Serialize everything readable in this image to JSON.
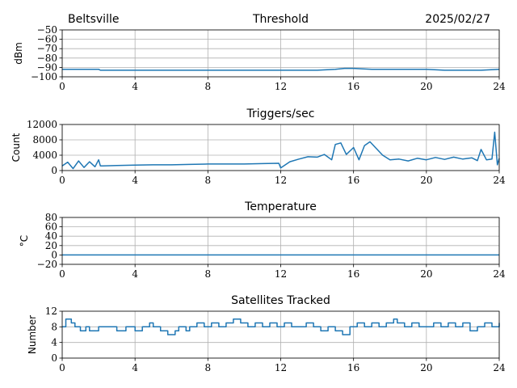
{
  "header": {
    "station": "Beltsville",
    "date": "2025/02/27"
  },
  "chart_data": [
    {
      "type": "line",
      "title": "Threshold",
      "ylabel": "dBm",
      "xlim": [
        0,
        24
      ],
      "ylim": [
        -100,
        -50
      ],
      "x_ticks": [
        0,
        4,
        8,
        12,
        16,
        20,
        24
      ],
      "y_ticks": [
        -100,
        -90,
        -80,
        -70,
        -60,
        -50
      ],
      "y_tick_labels": [
        "−100",
        "−90",
        "−80",
        "−70",
        "−60",
        "−50"
      ],
      "grid": true,
      "series": [
        {
          "x": [
            0,
            2,
            2.1,
            4,
            6,
            8,
            10,
            12,
            13,
            14,
            15,
            15.5,
            16,
            17,
            18,
            19,
            20,
            21,
            22,
            23,
            24
          ],
          "y": [
            -92,
            -92,
            -93,
            -93,
            -93,
            -93,
            -93,
            -93,
            -93,
            -93,
            -92,
            -91,
            -91,
            -92,
            -92,
            -92,
            -92,
            -93,
            -93,
            -93,
            -92
          ]
        }
      ]
    },
    {
      "type": "line",
      "title": "Triggers/sec",
      "ylabel": "Count",
      "xlim": [
        0,
        24
      ],
      "ylim": [
        0,
        12000
      ],
      "x_ticks": [
        0,
        4,
        8,
        12,
        16,
        20,
        24
      ],
      "y_ticks": [
        0,
        4000,
        8000,
        12000
      ],
      "y_tick_labels": [
        "0",
        "4000",
        "8000",
        "12000"
      ],
      "grid": true,
      "series": [
        {
          "x": [
            0,
            0.3,
            0.6,
            0.9,
            1.2,
            1.5,
            1.8,
            2.0,
            2.1,
            3,
            4,
            5,
            6,
            7,
            8,
            9,
            10,
            11,
            11.9,
            12.0,
            12.5,
            13,
            13.5,
            14,
            14.4,
            14.8,
            15.0,
            15.3,
            15.6,
            16.0,
            16.3,
            16.6,
            16.9,
            17.2,
            17.6,
            18.0,
            18.5,
            19.0,
            19.5,
            20.0,
            20.5,
            21.0,
            21.5,
            22.0,
            22.5,
            22.8,
            23.0,
            23.3,
            23.6,
            23.75,
            23.9,
            24.0
          ],
          "y": [
            1200,
            2200,
            500,
            2500,
            800,
            2300,
            1000,
            2800,
            1200,
            1300,
            1400,
            1500,
            1500,
            1600,
            1700,
            1700,
            1700,
            1800,
            1900,
            700,
            2300,
            3000,
            3600,
            3500,
            4200,
            2800,
            6800,
            7200,
            4200,
            6000,
            2800,
            6500,
            7500,
            6000,
            4000,
            2800,
            3000,
            2500,
            3200,
            2800,
            3400,
            2900,
            3500,
            3000,
            3300,
            2600,
            5500,
            2800,
            3000,
            10000,
            1500,
            3200
          ]
        }
      ]
    },
    {
      "type": "line",
      "title": "Temperature",
      "ylabel": "°C",
      "xlim": [
        0,
        24
      ],
      "ylim": [
        -20,
        80
      ],
      "x_ticks": [
        0,
        4,
        8,
        12,
        16,
        20,
        24
      ],
      "y_ticks": [
        -20,
        0,
        20,
        40,
        60,
        80
      ],
      "y_tick_labels": [
        "−20",
        "0",
        "20",
        "40",
        "60",
        "80"
      ],
      "grid": true,
      "series": [
        {
          "x": [
            0,
            24
          ],
          "y": [
            0,
            0
          ]
        }
      ]
    },
    {
      "type": "line",
      "title": "Satellites Tracked",
      "ylabel": "Number",
      "xlim": [
        0,
        24
      ],
      "ylim": [
        0,
        12
      ],
      "x_ticks": [
        0,
        4,
        8,
        12,
        16,
        20,
        24
      ],
      "y_ticks": [
        0,
        4,
        8,
        12
      ],
      "y_tick_labels": [
        "0",
        "4",
        "8",
        "12"
      ],
      "grid": true,
      "series": [
        {
          "step": true,
          "x": [
            0,
            0.2,
            0.5,
            0.7,
            1.0,
            1.3,
            1.5,
            2.0,
            2.5,
            3.0,
            3.5,
            4.0,
            4.4,
            4.8,
            5.0,
            5.4,
            5.8,
            6.2,
            6.4,
            6.8,
            7.0,
            7.4,
            7.8,
            8.2,
            8.6,
            9.0,
            9.4,
            9.8,
            10.2,
            10.6,
            11.0,
            11.4,
            11.8,
            12.2,
            12.6,
            13.0,
            13.4,
            13.8,
            14.2,
            14.6,
            15.0,
            15.4,
            15.8,
            16.2,
            16.6,
            17.0,
            17.4,
            17.8,
            18.2,
            18.4,
            18.8,
            19.2,
            19.6,
            20.0,
            20.4,
            20.8,
            21.2,
            21.6,
            22.0,
            22.4,
            22.8,
            23.2,
            23.6,
            24.0
          ],
          "y": [
            8,
            10,
            9,
            8,
            7,
            8,
            7,
            8,
            8,
            7,
            8,
            7,
            8,
            9,
            8,
            7,
            6,
            7,
            8,
            7,
            8,
            9,
            8,
            9,
            8,
            9,
            10,
            9,
            8,
            9,
            8,
            9,
            8,
            9,
            8,
            8,
            9,
            8,
            7,
            8,
            7,
            6,
            8,
            9,
            8,
            9,
            8,
            9,
            10,
            9,
            8,
            9,
            8,
            8,
            9,
            8,
            9,
            8,
            9,
            7,
            8,
            9,
            8,
            9
          ]
        }
      ]
    }
  ]
}
